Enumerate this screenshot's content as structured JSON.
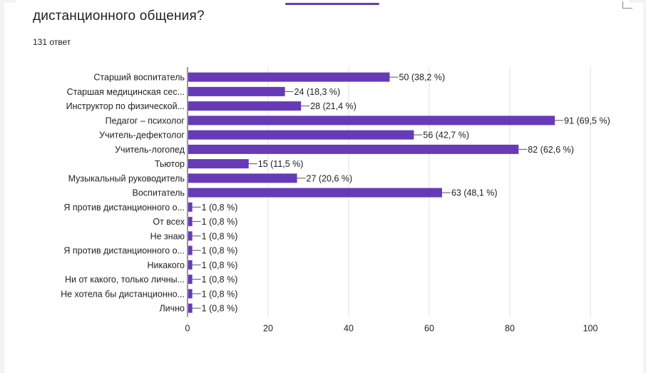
{
  "question": {
    "title": "дистанционного общения?",
    "responses": "131 ответ"
  },
  "colors": {
    "bar": "#673ab7",
    "grid": "#e0e0e0",
    "accent": "#673ab7"
  },
  "chart_data": {
    "type": "bar",
    "orientation": "horizontal",
    "title": "",
    "xlabel": "",
    "ylabel": "",
    "xlim": [
      0,
      100
    ],
    "ticks": [
      0,
      20,
      40,
      60,
      80,
      100
    ],
    "grid": true,
    "categories": [
      "Старший воспитатель",
      "Старшая медицинская сес...",
      "Инструктор по физической...",
      "Педагог – психолог",
      "Учитель-дефектолог",
      "Учитель-логопед",
      "Тьютор",
      "Музыкальный руководитель",
      "Воспитатель",
      "Я против дистанционного о...",
      "От всех",
      "Не знаю",
      "Я против дистанционного о...",
      "Никакого",
      "Ни от какого, только личны...",
      "Не хотела бы дистанционно...",
      "Лично"
    ],
    "values": [
      50,
      24,
      28,
      91,
      56,
      82,
      15,
      27,
      63,
      1,
      1,
      1,
      1,
      1,
      1,
      1,
      1
    ],
    "labels": [
      "50 (38,2 %)",
      "24 (18,3 %)",
      "28 (21,4 %)",
      "91 (69,5 %)",
      "56 (42,7 %)",
      "82 (62,6 %)",
      "15 (11,5 %)",
      "27 (20,6 %)",
      "63 (48,1 %)",
      "1 (0,8 %)",
      "1 (0,8 %)",
      "1 (0,8 %)",
      "1 (0,8 %)",
      "1 (0,8 %)",
      "1 (0,8 %)",
      "1 (0,8 %)",
      "1 (0,8 %)"
    ]
  }
}
